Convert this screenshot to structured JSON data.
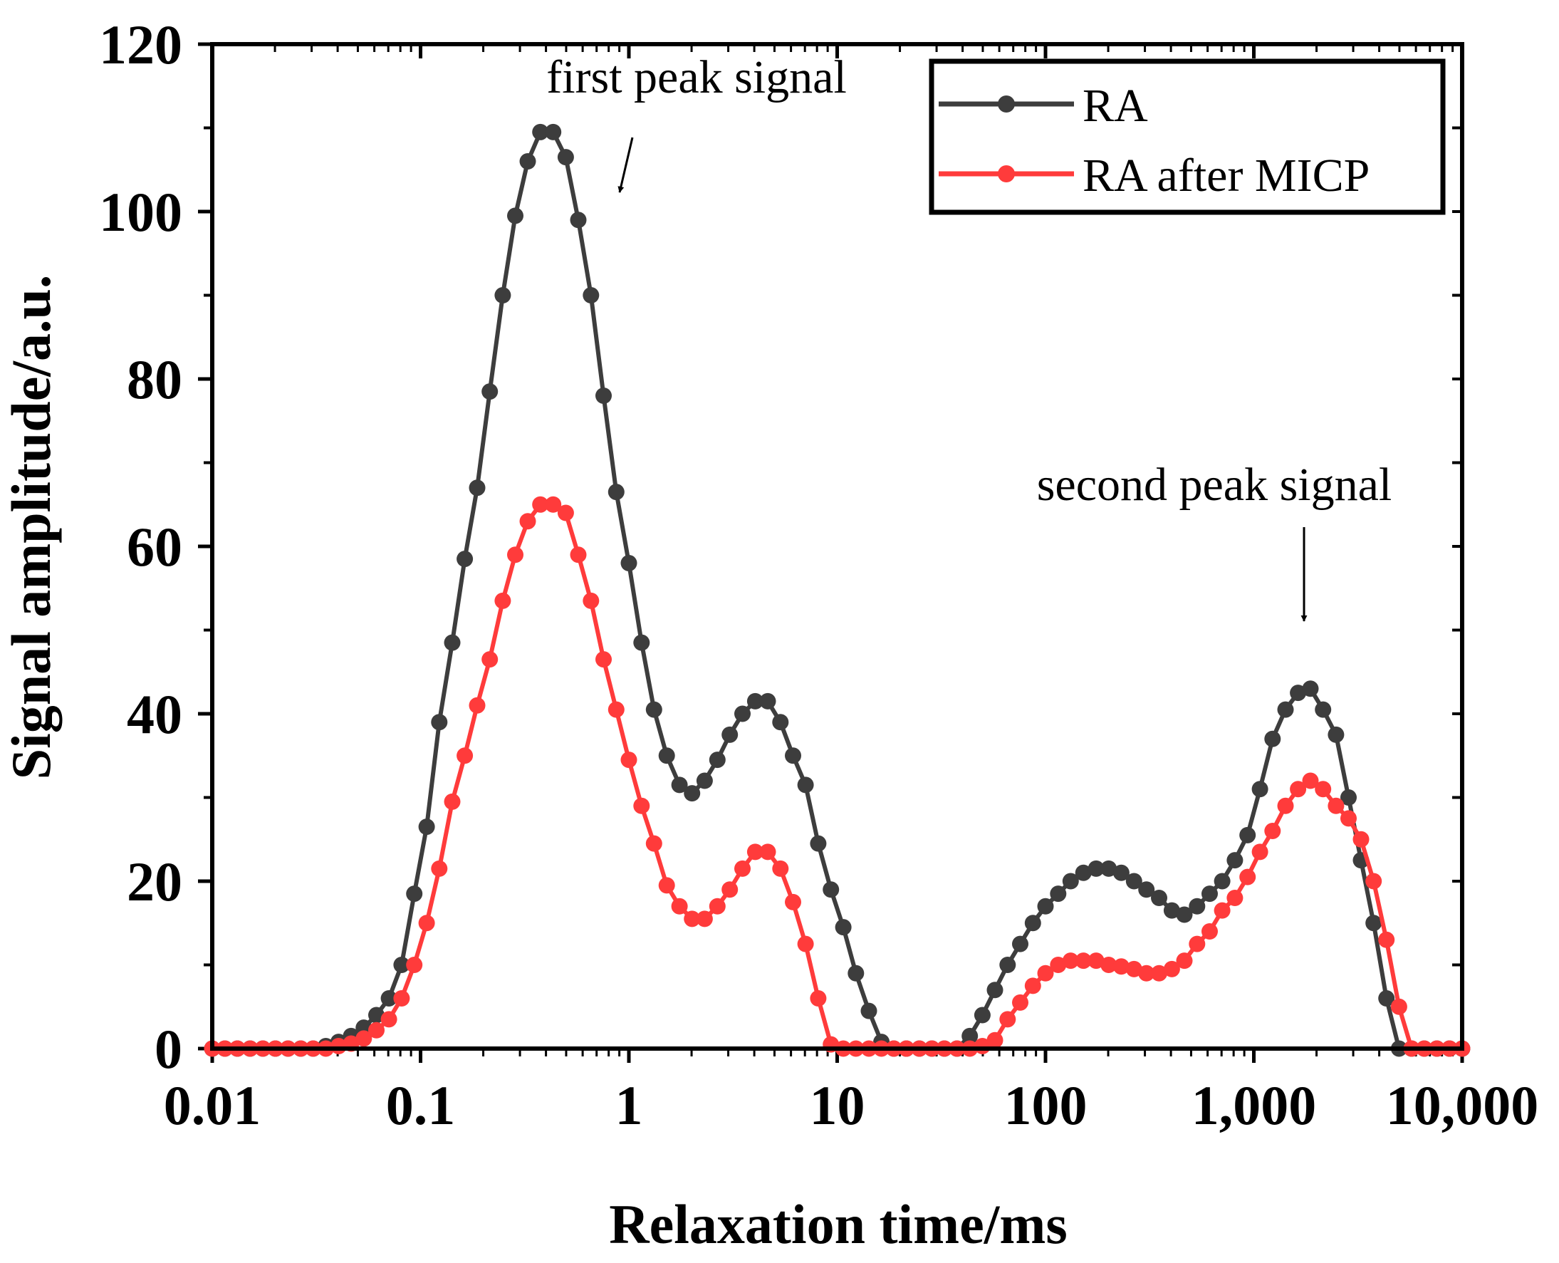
{
  "chart_data": {
    "type": "line",
    "xscale": "log",
    "xlabel": "Relaxation time/ms",
    "ylabel": "Signal amplitude/a.u.",
    "xlim": [
      0.01,
      10000
    ],
    "ylim": [
      0,
      120
    ],
    "xticks": [
      0.01,
      0.1,
      1,
      10,
      100,
      1000,
      10000
    ],
    "xtick_labels": [
      "0.01",
      "0.1",
      "1",
      "10",
      "100",
      "1,000",
      "10,000"
    ],
    "yticks": [
      0,
      20,
      40,
      60,
      80,
      100,
      120
    ],
    "ytick_labels": [
      "0",
      "20",
      "40",
      "60",
      "80",
      "100",
      "120"
    ],
    "legend_position": "top-right",
    "annotations": [
      {
        "text": "first peak signal",
        "x": 0.85,
        "y": 102
      },
      {
        "text": "second peak signal",
        "x": 1750,
        "y": 48
      }
    ],
    "series": [
      {
        "name": "RA",
        "color": "#3d3d3d",
        "points": [
          [
            0.01,
            0
          ],
          [
            0.0115,
            0
          ],
          [
            0.0132,
            0
          ],
          [
            0.0152,
            0
          ],
          [
            0.0175,
            0
          ],
          [
            0.0201,
            0
          ],
          [
            0.0231,
            0
          ],
          [
            0.0266,
            0
          ],
          [
            0.0305,
            0
          ],
          [
            0.0351,
            0.3
          ],
          [
            0.0404,
            0.8
          ],
          [
            0.0464,
            1.5
          ],
          [
            0.0534,
            2.5
          ],
          [
            0.0614,
            4
          ],
          [
            0.0705,
            6
          ],
          [
            0.0811,
            10
          ],
          [
            0.0933,
            18.5
          ],
          [
            0.107,
            26.5
          ],
          [
            0.123,
            39
          ],
          [
            0.142,
            48.5
          ],
          [
            0.163,
            58.5
          ],
          [
            0.187,
            67
          ],
          [
            0.215,
            78.5
          ],
          [
            0.248,
            90
          ],
          [
            0.285,
            99.5
          ],
          [
            0.327,
            106
          ],
          [
            0.376,
            109.5
          ],
          [
            0.433,
            109.5
          ],
          [
            0.498,
            106.5
          ],
          [
            0.572,
            99
          ],
          [
            0.658,
            90
          ],
          [
            0.756,
            78
          ],
          [
            0.87,
            66.5
          ],
          [
            1.0,
            58
          ],
          [
            1.15,
            48.5
          ],
          [
            1.32,
            40.5
          ],
          [
            1.52,
            35
          ],
          [
            1.75,
            31.5
          ],
          [
            2.01,
            30.5
          ],
          [
            2.31,
            32
          ],
          [
            2.66,
            34.5
          ],
          [
            3.05,
            37.5
          ],
          [
            3.51,
            40
          ],
          [
            4.04,
            41.5
          ],
          [
            4.64,
            41.5
          ],
          [
            5.34,
            39
          ],
          [
            6.14,
            35
          ],
          [
            7.05,
            31.5
          ],
          [
            8.11,
            24.5
          ],
          [
            9.33,
            19
          ],
          [
            10.7,
            14.5
          ],
          [
            12.3,
            9
          ],
          [
            14.2,
            4.5
          ],
          [
            16.3,
            0.8
          ],
          [
            18.7,
            0
          ],
          [
            21.5,
            0
          ],
          [
            24.8,
            0
          ],
          [
            28.5,
            0
          ],
          [
            32.7,
            0
          ],
          [
            37.6,
            0
          ],
          [
            43.3,
            1.5
          ],
          [
            49.8,
            4
          ],
          [
            57.2,
            7
          ],
          [
            65.8,
            10
          ],
          [
            75.6,
            12.5
          ],
          [
            87.0,
            15
          ],
          [
            100,
            17
          ],
          [
            115,
            18.5
          ],
          [
            132,
            20
          ],
          [
            152,
            21
          ],
          [
            175,
            21.5
          ],
          [
            201,
            21.5
          ],
          [
            231,
            21
          ],
          [
            266,
            20
          ],
          [
            305,
            19
          ],
          [
            351,
            18
          ],
          [
            404,
            16.5
          ],
          [
            464,
            16
          ],
          [
            534,
            17
          ],
          [
            614,
            18.5
          ],
          [
            705,
            20
          ],
          [
            811,
            22.5
          ],
          [
            933,
            25.5
          ],
          [
            1070,
            31
          ],
          [
            1230,
            37
          ],
          [
            1420,
            40.5
          ],
          [
            1630,
            42.5
          ],
          [
            1870,
            43
          ],
          [
            2150,
            40.5
          ],
          [
            2480,
            37.5
          ],
          [
            2850,
            30
          ],
          [
            3270,
            22.5
          ],
          [
            3760,
            15
          ],
          [
            4330,
            6
          ],
          [
            4980,
            0
          ],
          [
            5720,
            0
          ],
          [
            6580,
            0
          ],
          [
            7560,
            0
          ],
          [
            8700,
            0
          ],
          [
            10000,
            0
          ]
        ]
      },
      {
        "name": "RA after MICP",
        "color": "#ff3b3b",
        "points": [
          [
            0.01,
            0
          ],
          [
            0.0115,
            0
          ],
          [
            0.0132,
            0
          ],
          [
            0.0152,
            0
          ],
          [
            0.0175,
            0
          ],
          [
            0.0201,
            0
          ],
          [
            0.0231,
            0
          ],
          [
            0.0266,
            0
          ],
          [
            0.0305,
            0
          ],
          [
            0.0351,
            0
          ],
          [
            0.0404,
            0.3
          ],
          [
            0.0464,
            0.6
          ],
          [
            0.0534,
            1.2
          ],
          [
            0.0614,
            2.2
          ],
          [
            0.0705,
            3.5
          ],
          [
            0.0811,
            6
          ],
          [
            0.0933,
            10
          ],
          [
            0.107,
            15
          ],
          [
            0.123,
            21.5
          ],
          [
            0.142,
            29.5
          ],
          [
            0.163,
            35
          ],
          [
            0.187,
            41
          ],
          [
            0.215,
            46.5
          ],
          [
            0.248,
            53.5
          ],
          [
            0.285,
            59
          ],
          [
            0.327,
            63
          ],
          [
            0.376,
            65
          ],
          [
            0.433,
            65
          ],
          [
            0.498,
            64
          ],
          [
            0.572,
            59
          ],
          [
            0.658,
            53.5
          ],
          [
            0.756,
            46.5
          ],
          [
            0.87,
            40.5
          ],
          [
            1.0,
            34.5
          ],
          [
            1.15,
            29
          ],
          [
            1.32,
            24.5
          ],
          [
            1.52,
            19.5
          ],
          [
            1.75,
            17
          ],
          [
            2.01,
            15.5
          ],
          [
            2.31,
            15.5
          ],
          [
            2.66,
            17
          ],
          [
            3.05,
            19
          ],
          [
            3.51,
            21.5
          ],
          [
            4.04,
            23.5
          ],
          [
            4.64,
            23.5
          ],
          [
            5.34,
            21.5
          ],
          [
            6.14,
            17.5
          ],
          [
            7.05,
            12.5
          ],
          [
            8.11,
            6
          ],
          [
            9.33,
            0.5
          ],
          [
            10.7,
            0
          ],
          [
            12.3,
            0
          ],
          [
            14.2,
            0
          ],
          [
            16.3,
            0
          ],
          [
            18.7,
            0
          ],
          [
            21.5,
            0
          ],
          [
            24.8,
            0
          ],
          [
            28.5,
            0
          ],
          [
            32.7,
            0
          ],
          [
            37.6,
            0
          ],
          [
            43.3,
            0
          ],
          [
            49.8,
            0.3
          ],
          [
            57.2,
            1
          ],
          [
            65.8,
            3.5
          ],
          [
            75.6,
            5.5
          ],
          [
            87.0,
            7.5
          ],
          [
            100,
            9
          ],
          [
            115,
            10
          ],
          [
            132,
            10.5
          ],
          [
            152,
            10.5
          ],
          [
            175,
            10.5
          ],
          [
            201,
            10
          ],
          [
            231,
            9.8
          ],
          [
            266,
            9.5
          ],
          [
            305,
            9
          ],
          [
            351,
            9
          ],
          [
            404,
            9.5
          ],
          [
            464,
            10.5
          ],
          [
            534,
            12.5
          ],
          [
            614,
            14
          ],
          [
            705,
            16.5
          ],
          [
            811,
            18
          ],
          [
            933,
            20.5
          ],
          [
            1070,
            23.5
          ],
          [
            1230,
            26
          ],
          [
            1420,
            29
          ],
          [
            1630,
            31
          ],
          [
            1870,
            32
          ],
          [
            2150,
            31
          ],
          [
            2480,
            29
          ],
          [
            2850,
            27.5
          ],
          [
            3270,
            25
          ],
          [
            3760,
            20
          ],
          [
            4330,
            13
          ],
          [
            4980,
            5
          ],
          [
            5720,
            0
          ],
          [
            6580,
            0
          ],
          [
            7560,
            0
          ],
          [
            8700,
            0
          ],
          [
            10000,
            0
          ]
        ]
      }
    ]
  }
}
